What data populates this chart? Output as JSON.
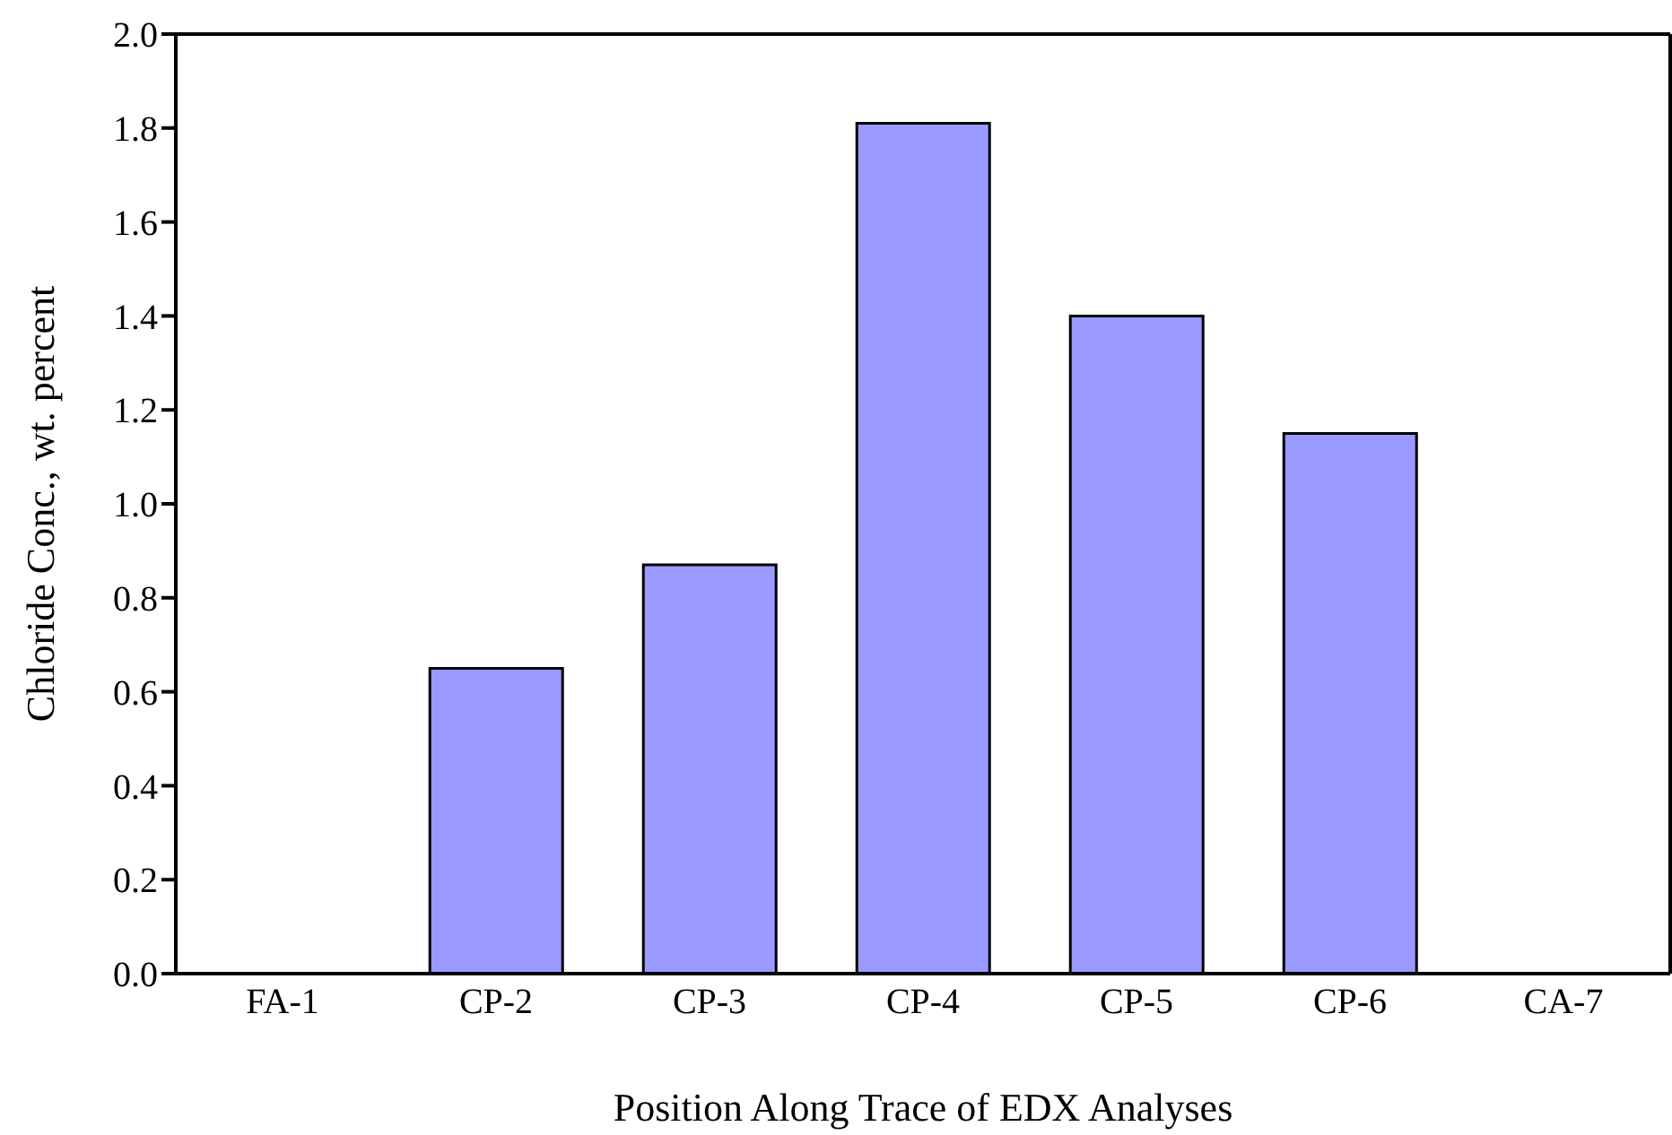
{
  "chart_data": {
    "type": "bar",
    "xlabel": "Position Along Trace of EDX Analyses",
    "ylabel": "Chloride Conc., wt. percent",
    "categories": [
      "FA-1",
      "CP-2",
      "CP-3",
      "CP-4",
      "CP-5",
      "CP-6",
      "CA-7"
    ],
    "values": [
      0,
      0.65,
      0.87,
      1.81,
      1.4,
      1.15,
      0
    ],
    "color": "#9999ff",
    "ylim": [
      0,
      2.0
    ],
    "yticks": [
      {
        "value": 0,
        "label": "0.0"
      },
      {
        "value": 0.2,
        "label": "0.2"
      },
      {
        "value": 0.4,
        "label": "0.4"
      },
      {
        "value": 0.6,
        "label": "0.6"
      },
      {
        "value": 0.8,
        "label": "0.8"
      },
      {
        "value": 1.0,
        "label": "1.0"
      },
      {
        "value": 1.2,
        "label": "1.2"
      },
      {
        "value": 1.4,
        "label": "1.4"
      },
      {
        "value": 1.6,
        "label": "1.6"
      },
      {
        "value": 1.8,
        "label": "1.8"
      },
      {
        "value": 2.0,
        "label": "2.0"
      }
    ],
    "grid": false,
    "legend": false
  }
}
